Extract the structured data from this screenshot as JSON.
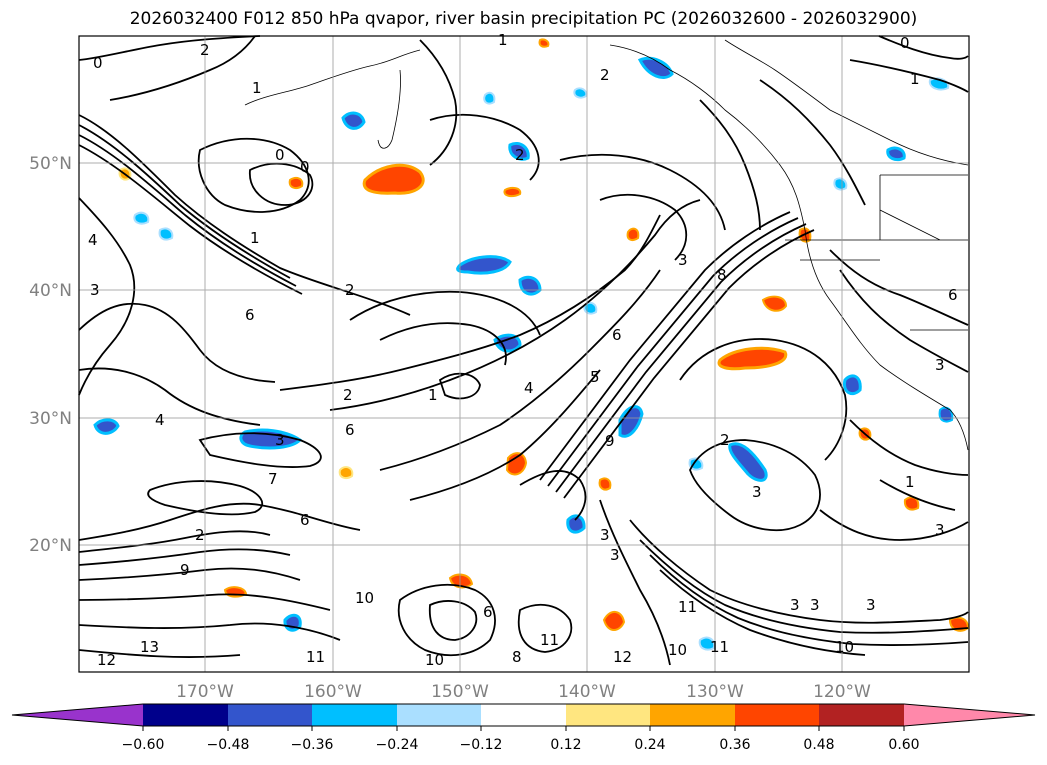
{
  "title": "2026032400 F012 850 hPa qvapor, river basin precipitation PC (2026032600 - 2026032900)",
  "map": {
    "lon_labels": [
      "170°W",
      "160°W",
      "150°W",
      "140°W",
      "130°W",
      "120°W"
    ],
    "lat_labels": [
      "50°N",
      "40°N",
      "30°N",
      "20°N"
    ],
    "contour_labels": [
      "0",
      "1",
      "2",
      "3",
      "4",
      "5",
      "6",
      "7",
      "8",
      "9",
      "10",
      "11",
      "12",
      "13"
    ],
    "label_color": "#808080",
    "grid_color": "#999999"
  },
  "colorbar": {
    "ticks": [
      "−0.60",
      "−0.48",
      "−0.36",
      "−0.24",
      "−0.12",
      "0.12",
      "0.24",
      "0.36",
      "0.48",
      "0.60"
    ],
    "colors": [
      "#9933cc",
      "#00008b",
      "#3355cc",
      "#00bfff",
      "#aadfff",
      "#ffffff",
      "#ffe680",
      "#ffa500",
      "#ff4500",
      "#b22222",
      "#ff88aa"
    ]
  }
}
